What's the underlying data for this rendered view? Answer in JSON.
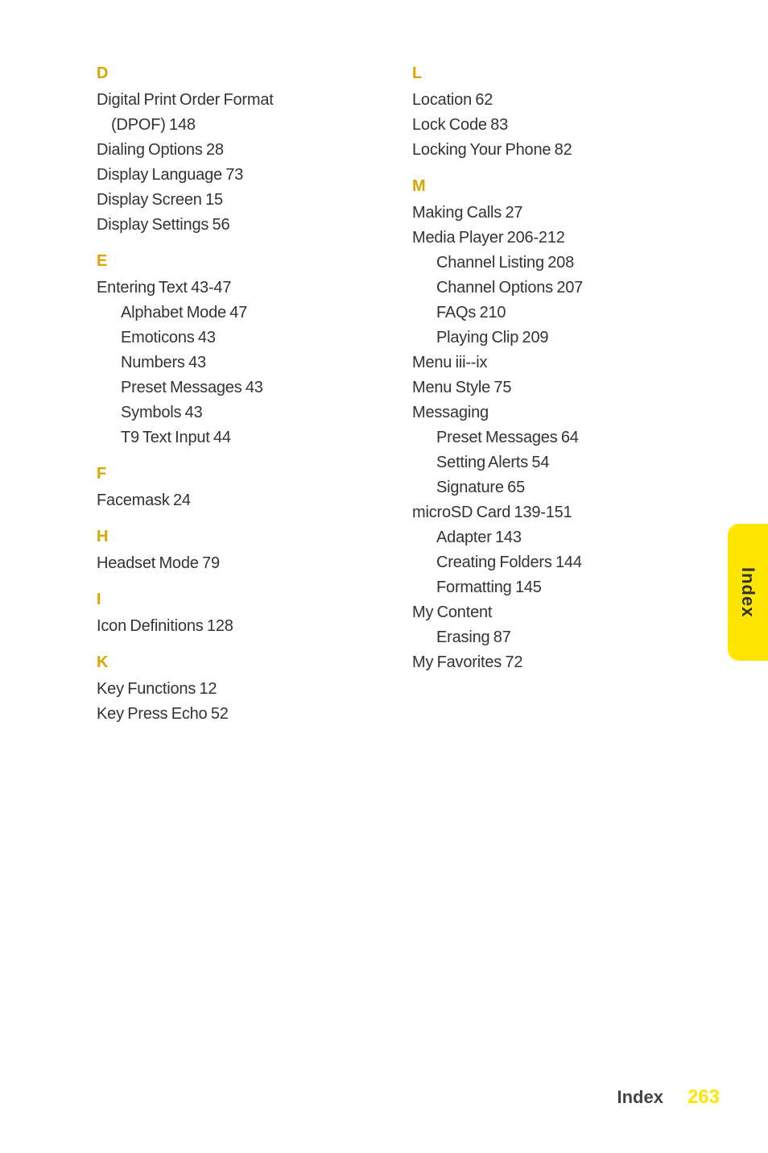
{
  "side_tab": "Index",
  "footer": {
    "label": "Index",
    "page": "263"
  },
  "left": {
    "D": {
      "letter": "D",
      "items": [
        {
          "t": "Digital Print Order Format"
        },
        {
          "t": "(DPOF) 148",
          "cls": "sub2"
        },
        {
          "t": "Dialing Options 28"
        },
        {
          "t": "Display Language 73"
        },
        {
          "t": "Display Screen 15"
        },
        {
          "t": "Display Settings 56"
        }
      ]
    },
    "E": {
      "letter": "E",
      "items": [
        {
          "t": "Entering Text 43-47"
        },
        {
          "t": "Alphabet Mode 47",
          "cls": "sub"
        },
        {
          "t": "Emoticons 43",
          "cls": "sub"
        },
        {
          "t": "Numbers 43",
          "cls": "sub"
        },
        {
          "t": "Preset Messages 43",
          "cls": "sub"
        },
        {
          "t": "Symbols 43",
          "cls": "sub"
        },
        {
          "t": "T9 Text Input 44",
          "cls": "sub"
        }
      ]
    },
    "F": {
      "letter": "F",
      "items": [
        {
          "t": "Facemask 24"
        }
      ]
    },
    "H": {
      "letter": "H",
      "items": [
        {
          "t": "Headset Mode 79"
        }
      ]
    },
    "I": {
      "letter": "I",
      "items": [
        {
          "t": "Icon Definitions 128"
        }
      ]
    },
    "K": {
      "letter": "K",
      "items": [
        {
          "t": "Key Functions 12"
        },
        {
          "t": "Key Press Echo 52"
        }
      ]
    }
  },
  "right": {
    "L": {
      "letter": "L",
      "items": [
        {
          "t": "Location 62"
        },
        {
          "t": "Lock Code 83"
        },
        {
          "t": "Locking Your Phone 82"
        }
      ]
    },
    "M": {
      "letter": "M",
      "items": [
        {
          "t": "Making Calls 27"
        },
        {
          "t": "Media Player 206-212"
        },
        {
          "t": "Channel Listing 208",
          "cls": "sub"
        },
        {
          "t": "Channel Options 207",
          "cls": "sub"
        },
        {
          "t": "FAQs 210",
          "cls": "sub"
        },
        {
          "t": "Playing Clip 209",
          "cls": "sub"
        },
        {
          "t": "Menu iii--ix"
        },
        {
          "t": "Menu Style 75"
        },
        {
          "t": "Messaging"
        },
        {
          "t": "Preset Messages 64",
          "cls": "sub"
        },
        {
          "t": "Setting Alerts 54",
          "cls": "sub"
        },
        {
          "t": "Signature 65",
          "cls": "sub"
        },
        {
          "t": "microSD Card 139-151"
        },
        {
          "t": "Adapter 143",
          "cls": "sub"
        },
        {
          "t": "Creating Folders 144",
          "cls": "sub"
        },
        {
          "t": "Formatting 145",
          "cls": "sub"
        },
        {
          "t": "My Content"
        },
        {
          "t": "Erasing 87",
          "cls": "sub"
        },
        {
          "t": "My Favorites 72"
        }
      ]
    }
  }
}
